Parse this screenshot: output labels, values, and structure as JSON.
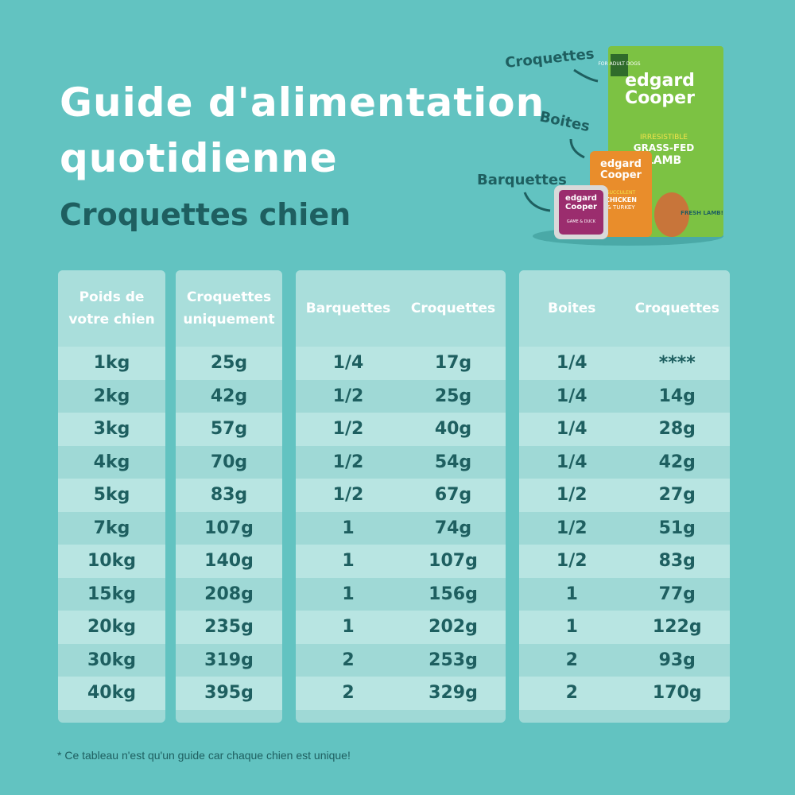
{
  "header": {
    "title_line1": "Guide d'alimentation",
    "title_line2": "quotidienne",
    "subtitle": "Croquettes chien"
  },
  "products": {
    "labels": [
      "Croquettes",
      "Boites",
      "Barquettes"
    ],
    "bag": {
      "tag": "FOR ADULT DOGS",
      "brand1": "edgard",
      "brand2": "Cooper",
      "line1": "IRRESISTIBLE",
      "line2": "GRASS-FED",
      "line3": "LAMB",
      "badge": "FRESH LAMB!"
    },
    "can": {
      "brand1": "edgard",
      "brand2": "Cooper",
      "line1": "SUCCULENT",
      "line2": "CHICKEN",
      "line3": "& TURKEY"
    },
    "tray": {
      "brand1": "edgard",
      "brand2": "Cooper",
      "line1": "GAME & DUCK"
    }
  },
  "tables": [
    {
      "headers": [
        "Poids de votre chien"
      ],
      "rows": [
        [
          "1kg"
        ],
        [
          "2kg"
        ],
        [
          "3kg"
        ],
        [
          "4kg"
        ],
        [
          "5kg"
        ],
        [
          "7kg"
        ],
        [
          "10kg"
        ],
        [
          "15kg"
        ],
        [
          "20kg"
        ],
        [
          "30kg"
        ],
        [
          "40kg"
        ]
      ]
    },
    {
      "headers": [
        "Croquettes uniquement"
      ],
      "rows": [
        [
          "25g"
        ],
        [
          "42g"
        ],
        [
          "57g"
        ],
        [
          "70g"
        ],
        [
          "83g"
        ],
        [
          "107g"
        ],
        [
          "140g"
        ],
        [
          "208g"
        ],
        [
          "235g"
        ],
        [
          "319g"
        ],
        [
          "395g"
        ]
      ]
    },
    {
      "headers": [
        "Barquettes",
        "Croquettes"
      ],
      "rows": [
        [
          "1/4",
          "17g"
        ],
        [
          "1/2",
          "25g"
        ],
        [
          "1/2",
          "40g"
        ],
        [
          "1/2",
          "54g"
        ],
        [
          "1/2",
          "67g"
        ],
        [
          "1",
          "74g"
        ],
        [
          "1",
          "107g"
        ],
        [
          "1",
          "156g"
        ],
        [
          "1",
          "202g"
        ],
        [
          "2",
          "253g"
        ],
        [
          "2",
          "329g"
        ]
      ]
    },
    {
      "headers": [
        "Boites",
        "Croquettes"
      ],
      "rows": [
        [
          "1/4",
          "****"
        ],
        [
          "1/4",
          "14g"
        ],
        [
          "1/4",
          "28g"
        ],
        [
          "1/4",
          "42g"
        ],
        [
          "1/2",
          "27g"
        ],
        [
          "1/2",
          "51g"
        ],
        [
          "1/2",
          "83g"
        ],
        [
          "1",
          "77g"
        ],
        [
          "1",
          "122g"
        ],
        [
          "2",
          "93g"
        ],
        [
          "2",
          "170g"
        ]
      ]
    }
  ],
  "footnote": "* Ce tableau n'est qu'un guide car chaque chien est unique!"
}
